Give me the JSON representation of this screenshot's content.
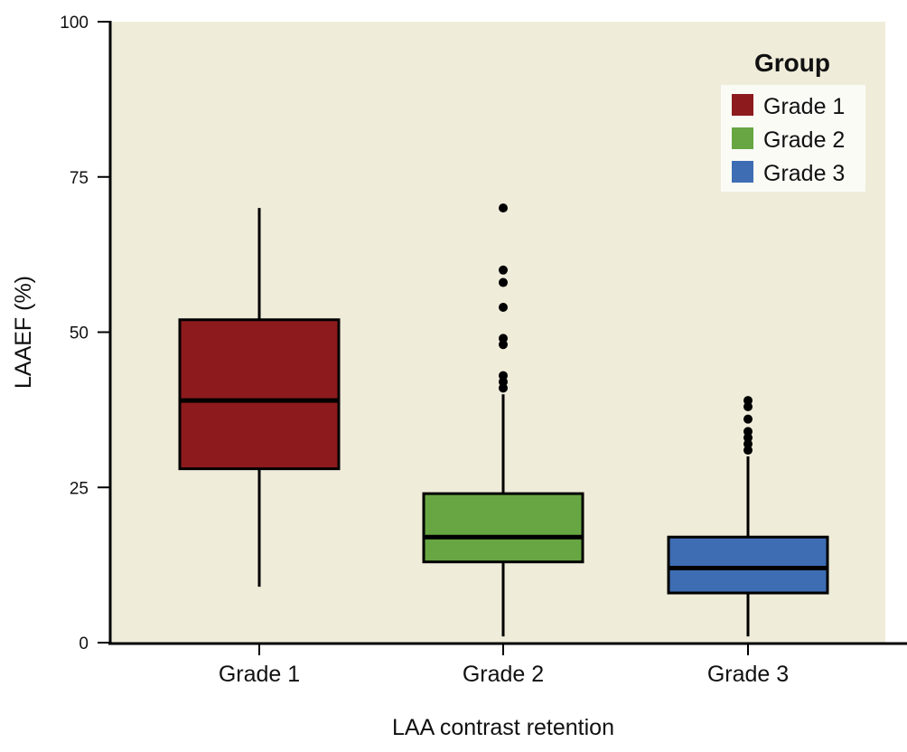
{
  "chart_data": {
    "type": "boxplot",
    "title": "",
    "xlabel": "LAA contrast retention",
    "ylabel": "LAAEF (%)",
    "ylim": [
      0,
      100
    ],
    "yticks": [
      0,
      25,
      50,
      75,
      100
    ],
    "ytick_labels": [
      "0",
      "25",
      "50",
      "75",
      "100"
    ],
    "categories": [
      "Grade 1",
      "Grade 2",
      "Grade 3"
    ],
    "grid": false,
    "background_color": "#efecda",
    "legend": {
      "title": "Group",
      "position": "top-right",
      "entries": [
        {
          "label": "Grade 1",
          "color": "#8d1a1c"
        },
        {
          "label": "Grade 2",
          "color": "#67a642"
        },
        {
          "label": "Grade 3",
          "color": "#3f6db3"
        }
      ]
    },
    "series": [
      {
        "name": "Grade 1",
        "color": "#8d1a1c",
        "whisker_low": 9,
        "q1": 28,
        "median": 39,
        "q3": 52,
        "whisker_high": 70,
        "outliers": []
      },
      {
        "name": "Grade 2",
        "color": "#67a642",
        "whisker_low": 1,
        "q1": 13,
        "median": 17,
        "q3": 24,
        "whisker_high": 40,
        "outliers": [
          70,
          60,
          58,
          54,
          49,
          48,
          43,
          42,
          41
        ]
      },
      {
        "name": "Grade 3",
        "color": "#3f6db3",
        "whisker_low": 1,
        "q1": 8,
        "median": 12,
        "q3": 17,
        "whisker_high": 30,
        "outliers": [
          39,
          38,
          36,
          34,
          33,
          32,
          31
        ]
      }
    ]
  }
}
